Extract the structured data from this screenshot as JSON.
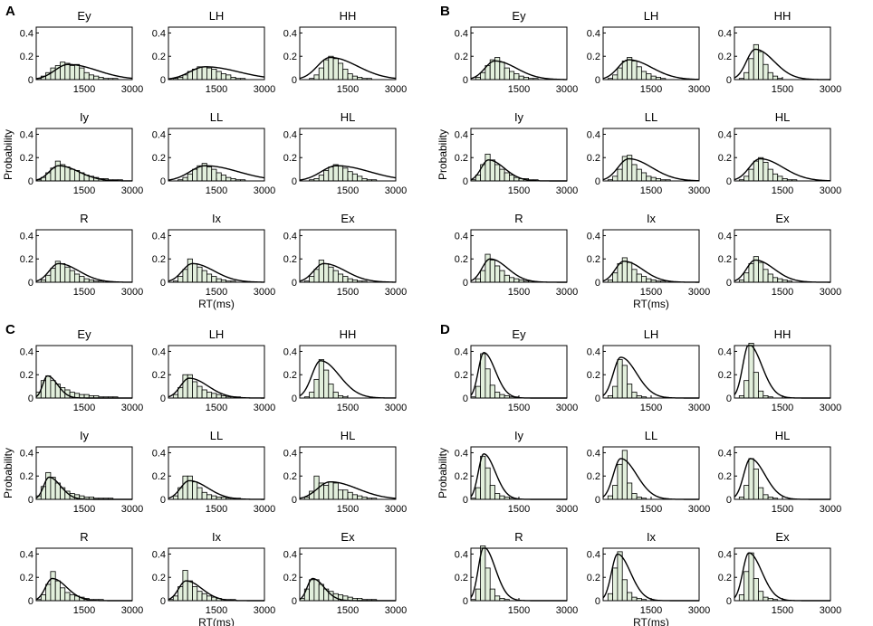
{
  "figure": {
    "x_axis_label": "RT(ms)",
    "y_axis_label": "Probability",
    "x_ticks": [
      "1500",
      "3000"
    ],
    "y_ticks": [
      "0",
      "0.2",
      "0.4"
    ]
  },
  "chart_data": [
    {
      "panel": "A",
      "type": "bar",
      "xlim": [
        0,
        3000
      ],
      "ylim": [
        0,
        0.45
      ],
      "subplots": [
        {
          "title": "Ey",
          "peak_x": 1000,
          "peak_y": 0.13,
          "bars": [
            0.01,
            0.03,
            0.06,
            0.1,
            0.12,
            0.15,
            0.14,
            0.12,
            0.13,
            0.1,
            0.06,
            0.04,
            0.03,
            0.02,
            0.01,
            0.01,
            0.01,
            0,
            0,
            0
          ]
        },
        {
          "title": "LH",
          "peak_x": 1150,
          "peak_y": 0.11,
          "bars": [
            0,
            0.01,
            0.02,
            0.04,
            0.07,
            0.09,
            0.11,
            0.11,
            0.1,
            0.09,
            0.07,
            0.05,
            0.04,
            0.02,
            0.01,
            0.01,
            0,
            0,
            0,
            0
          ]
        },
        {
          "title": "HH",
          "peak_x": 950,
          "peak_y": 0.19,
          "bars": [
            0,
            0,
            0.01,
            0.04,
            0.1,
            0.17,
            0.2,
            0.18,
            0.14,
            0.09,
            0.05,
            0.03,
            0.02,
            0.01,
            0.01,
            0,
            0,
            0,
            0,
            0
          ]
        },
        {
          "title": "Iy",
          "peak_x": 700,
          "peak_y": 0.13,
          "bars": [
            0.01,
            0.03,
            0.07,
            0.11,
            0.17,
            0.14,
            0.12,
            0.1,
            0.09,
            0.07,
            0.05,
            0.04,
            0.03,
            0.02,
            0.02,
            0.01,
            0.01,
            0.01,
            0,
            0
          ]
        },
        {
          "title": "LL",
          "peak_x": 1150,
          "peak_y": 0.13,
          "bars": [
            0,
            0,
            0.01,
            0.03,
            0.06,
            0.1,
            0.13,
            0.15,
            0.12,
            0.1,
            0.07,
            0.05,
            0.03,
            0.02,
            0.01,
            0.01,
            0,
            0,
            0,
            0
          ]
        },
        {
          "title": "HL",
          "peak_x": 1150,
          "peak_y": 0.13,
          "bars": [
            0,
            0,
            0.01,
            0.02,
            0.05,
            0.09,
            0.12,
            0.14,
            0.13,
            0.11,
            0.08,
            0.06,
            0.04,
            0.02,
            0.01,
            0.01,
            0,
            0,
            0,
            0
          ]
        },
        {
          "title": "R",
          "peak_x": 700,
          "peak_y": 0.16,
          "bars": [
            0,
            0.02,
            0.06,
            0.12,
            0.18,
            0.16,
            0.13,
            0.1,
            0.07,
            0.05,
            0.03,
            0.02,
            0.01,
            0.01,
            0,
            0,
            0,
            0,
            0,
            0
          ]
        },
        {
          "title": "Ix",
          "peak_x": 750,
          "peak_y": 0.16,
          "bars": [
            0,
            0.01,
            0.05,
            0.11,
            0.2,
            0.16,
            0.13,
            0.1,
            0.07,
            0.05,
            0.03,
            0.02,
            0.01,
            0.01,
            0,
            0,
            0,
            0,
            0,
            0
          ]
        },
        {
          "title": "Ex",
          "peak_x": 750,
          "peak_y": 0.16,
          "bars": [
            0,
            0.01,
            0.05,
            0.11,
            0.19,
            0.16,
            0.13,
            0.1,
            0.07,
            0.05,
            0.03,
            0.02,
            0.01,
            0.01,
            0,
            0,
            0,
            0,
            0,
            0
          ]
        }
      ]
    },
    {
      "panel": "B",
      "type": "bar",
      "xlim": [
        0,
        3000
      ],
      "ylim": [
        0,
        0.45
      ],
      "subplots": [
        {
          "title": "Ey",
          "peak_x": 750,
          "peak_y": 0.16,
          "bars": [
            0,
            0.02,
            0.06,
            0.12,
            0.17,
            0.19,
            0.15,
            0.1,
            0.07,
            0.05,
            0.03,
            0.02,
            0.01,
            0.01,
            0,
            0,
            0,
            0,
            0,
            0
          ]
        },
        {
          "title": "LH",
          "peak_x": 800,
          "peak_y": 0.17,
          "bars": [
            0,
            0.01,
            0.04,
            0.1,
            0.16,
            0.19,
            0.16,
            0.11,
            0.07,
            0.05,
            0.03,
            0.02,
            0.01,
            0,
            0,
            0,
            0,
            0,
            0,
            0
          ]
        },
        {
          "title": "HH",
          "peak_x": 650,
          "peak_y": 0.26,
          "bars": [
            0,
            0.01,
            0.06,
            0.18,
            0.3,
            0.24,
            0.13,
            0.06,
            0.03,
            0.01,
            0,
            0,
            0,
            0,
            0,
            0,
            0,
            0,
            0,
            0
          ]
        },
        {
          "title": "Iy",
          "peak_x": 550,
          "peak_y": 0.18,
          "bars": [
            0.01,
            0.05,
            0.14,
            0.23,
            0.18,
            0.14,
            0.1,
            0.07,
            0.05,
            0.03,
            0.02,
            0.02,
            0.01,
            0.01,
            0,
            0,
            0,
            0,
            0,
            0
          ]
        },
        {
          "title": "LL",
          "peak_x": 800,
          "peak_y": 0.19,
          "bars": [
            0,
            0.01,
            0.04,
            0.1,
            0.21,
            0.22,
            0.14,
            0.1,
            0.07,
            0.04,
            0.03,
            0.02,
            0.01,
            0.01,
            0,
            0,
            0,
            0,
            0,
            0
          ]
        },
        {
          "title": "HL",
          "peak_x": 800,
          "peak_y": 0.19,
          "bars": [
            0,
            0.01,
            0.04,
            0.1,
            0.17,
            0.2,
            0.16,
            0.1,
            0.06,
            0.04,
            0.02,
            0.01,
            0.01,
            0,
            0,
            0,
            0,
            0,
            0,
            0
          ]
        },
        {
          "title": "R",
          "peak_x": 600,
          "peak_y": 0.2,
          "bars": [
            0,
            0.03,
            0.1,
            0.24,
            0.19,
            0.14,
            0.1,
            0.06,
            0.04,
            0.03,
            0.02,
            0.01,
            0.01,
            0,
            0,
            0,
            0,
            0,
            0,
            0
          ]
        },
        {
          "title": "Ix",
          "peak_x": 650,
          "peak_y": 0.18,
          "bars": [
            0,
            0.02,
            0.08,
            0.16,
            0.21,
            0.17,
            0.11,
            0.07,
            0.05,
            0.03,
            0.02,
            0.01,
            0.01,
            0,
            0,
            0,
            0,
            0,
            0,
            0
          ]
        },
        {
          "title": "Ex",
          "peak_x": 650,
          "peak_y": 0.19,
          "bars": [
            0,
            0.02,
            0.08,
            0.16,
            0.22,
            0.17,
            0.11,
            0.07,
            0.04,
            0.03,
            0.02,
            0.01,
            0,
            0,
            0,
            0,
            0,
            0,
            0,
            0
          ]
        }
      ]
    },
    {
      "panel": "C",
      "type": "bar",
      "xlim": [
        0,
        3000
      ],
      "ylim": [
        0,
        0.45
      ],
      "subplots": [
        {
          "title": "Ey",
          "peak_x": 350,
          "peak_y": 0.19,
          "bars": [
            0.05,
            0.15,
            0.19,
            0.15,
            0.12,
            0.09,
            0.07,
            0.05,
            0.04,
            0.03,
            0.03,
            0.02,
            0.02,
            0.01,
            0.01,
            0.01,
            0.01,
            0,
            0,
            0
          ]
        },
        {
          "title": "LH",
          "peak_x": 650,
          "peak_y": 0.17,
          "bars": [
            0,
            0.03,
            0.09,
            0.2,
            0.2,
            0.14,
            0.1,
            0.07,
            0.05,
            0.04,
            0.03,
            0.02,
            0.01,
            0.01,
            0.01,
            0,
            0,
            0,
            0,
            0
          ]
        },
        {
          "title": "HH",
          "peak_x": 650,
          "peak_y": 0.32,
          "bars": [
            0,
            0.01,
            0.05,
            0.16,
            0.33,
            0.24,
            0.12,
            0.05,
            0.02,
            0.01,
            0,
            0,
            0,
            0,
            0,
            0,
            0,
            0,
            0,
            0
          ]
        },
        {
          "title": "Iy",
          "peak_x": 400,
          "peak_y": 0.19,
          "bars": [
            0.03,
            0.11,
            0.23,
            0.19,
            0.14,
            0.1,
            0.07,
            0.05,
            0.04,
            0.03,
            0.02,
            0.02,
            0.01,
            0.01,
            0.01,
            0.01,
            0,
            0,
            0,
            0
          ]
        },
        {
          "title": "LL",
          "peak_x": 650,
          "peak_y": 0.16,
          "bars": [
            0,
            0.03,
            0.1,
            0.2,
            0.2,
            0.15,
            0.1,
            0.06,
            0.04,
            0.03,
            0.02,
            0.02,
            0.01,
            0.01,
            0.01,
            0,
            0,
            0,
            0,
            0
          ]
        },
        {
          "title": "HL",
          "peak_x": 950,
          "peak_y": 0.15,
          "bars": [
            0,
            0.02,
            0.07,
            0.2,
            0.14,
            0.12,
            0.15,
            0.14,
            0.08,
            0.08,
            0.06,
            0.04,
            0.03,
            0.02,
            0.01,
            0.01,
            0,
            0,
            0,
            0
          ]
        },
        {
          "title": "R",
          "peak_x": 500,
          "peak_y": 0.19,
          "bars": [
            0.01,
            0.05,
            0.14,
            0.25,
            0.17,
            0.11,
            0.07,
            0.05,
            0.04,
            0.03,
            0.02,
            0.01,
            0.01,
            0.01,
            0,
            0,
            0,
            0,
            0,
            0
          ]
        },
        {
          "title": "Ix",
          "peak_x": 550,
          "peak_y": 0.17,
          "bars": [
            0.01,
            0.04,
            0.12,
            0.26,
            0.17,
            0.12,
            0.08,
            0.06,
            0.04,
            0.03,
            0.02,
            0.01,
            0.01,
            0.01,
            0,
            0,
            0,
            0,
            0,
            0
          ]
        },
        {
          "title": "Ex",
          "peak_x": 400,
          "peak_y": 0.19,
          "bars": [
            0.02,
            0.1,
            0.18,
            0.18,
            0.14,
            0.1,
            0.08,
            0.06,
            0.05,
            0.04,
            0.03,
            0.02,
            0.02,
            0.01,
            0.01,
            0.01,
            0,
            0,
            0,
            0
          ]
        }
      ]
    },
    {
      "panel": "D",
      "type": "bar",
      "xlim": [
        0,
        3000
      ],
      "ylim": [
        0,
        0.45
      ],
      "subplots": [
        {
          "title": "Ey",
          "peak_x": 400,
          "peak_y": 0.39,
          "bars": [
            0.01,
            0.1,
            0.38,
            0.25,
            0.11,
            0.05,
            0.03,
            0.02,
            0.01,
            0.01,
            0,
            0,
            0,
            0,
            0,
            0,
            0,
            0,
            0,
            0
          ]
        },
        {
          "title": "LH",
          "peak_x": 550,
          "peak_y": 0.35,
          "bars": [
            0,
            0.02,
            0.1,
            0.33,
            0.28,
            0.12,
            0.05,
            0.02,
            0.01,
            0,
            0,
            0,
            0,
            0,
            0,
            0,
            0,
            0,
            0,
            0
          ]
        },
        {
          "title": "HH",
          "peak_x": 450,
          "peak_y": 0.46,
          "bars": [
            0,
            0.02,
            0.15,
            0.47,
            0.22,
            0.06,
            0.02,
            0.01,
            0,
            0,
            0,
            0,
            0,
            0,
            0,
            0,
            0,
            0,
            0,
            0
          ]
        },
        {
          "title": "Iy",
          "peak_x": 400,
          "peak_y": 0.39,
          "bars": [
            0.01,
            0.1,
            0.37,
            0.27,
            0.12,
            0.05,
            0.03,
            0.02,
            0.01,
            0,
            0,
            0,
            0,
            0,
            0,
            0,
            0,
            0,
            0,
            0
          ]
        },
        {
          "title": "LL",
          "peak_x": 550,
          "peak_y": 0.35,
          "bars": [
            0,
            0.03,
            0.12,
            0.3,
            0.42,
            0.14,
            0.05,
            0.02,
            0.01,
            0,
            0,
            0,
            0,
            0,
            0,
            0,
            0,
            0,
            0,
            0
          ]
        },
        {
          "title": "HL",
          "peak_x": 500,
          "peak_y": 0.35,
          "bars": [
            0,
            0.02,
            0.12,
            0.35,
            0.26,
            0.1,
            0.04,
            0.02,
            0.01,
            0,
            0,
            0,
            0,
            0,
            0,
            0,
            0,
            0,
            0,
            0
          ]
        },
        {
          "title": "R",
          "peak_x": 400,
          "peak_y": 0.46,
          "bars": [
            0.01,
            0.1,
            0.47,
            0.28,
            0.1,
            0.04,
            0.02,
            0.01,
            0,
            0,
            0,
            0,
            0,
            0,
            0,
            0,
            0,
            0,
            0,
            0
          ]
        },
        {
          "title": "Ix",
          "peak_x": 450,
          "peak_y": 0.4,
          "bars": [
            0,
            0.06,
            0.28,
            0.42,
            0.18,
            0.07,
            0.03,
            0.02,
            0.01,
            0,
            0,
            0,
            0,
            0,
            0,
            0,
            0,
            0,
            0,
            0
          ]
        },
        {
          "title": "Ex",
          "peak_x": 450,
          "peak_y": 0.41,
          "bars": [
            0,
            0.05,
            0.25,
            0.41,
            0.19,
            0.08,
            0.03,
            0.02,
            0.01,
            0,
            0,
            0,
            0,
            0,
            0,
            0,
            0,
            0,
            0,
            0
          ]
        }
      ]
    }
  ]
}
